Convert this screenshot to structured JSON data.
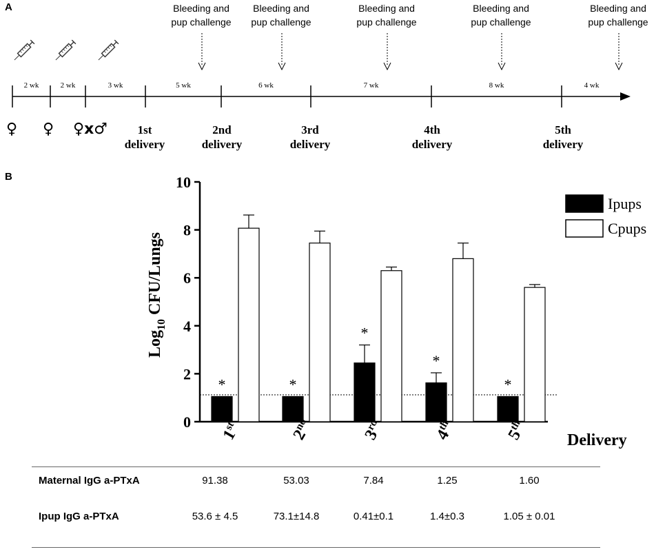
{
  "panels": {
    "a": "A",
    "b": "B"
  },
  "timeline": {
    "intervals": [
      "2 wk",
      "2 wk",
      "3 wk",
      "5 wk",
      "6 wk",
      "7 wk",
      "8 wk",
      "4 wk"
    ],
    "annotations": [
      {
        "line1": "Bleeding and",
        "line2": "pup challenge"
      },
      {
        "line1": "Bleeding and",
        "line2": "pup challenge"
      },
      {
        "line1": "Bleeding and",
        "line2": "pup challenge"
      },
      {
        "line1": "Bleeding and",
        "line2": "pup challenge"
      },
      {
        "line1": "Bleeding and",
        "line2": "pup challenge"
      }
    ],
    "sex_symbols": [
      "♀",
      "♀",
      "♀x♂"
    ],
    "deliveries": [
      {
        "line1": "1st",
        "line2": "delivery"
      },
      {
        "line1": "2nd",
        "line2": "delivery"
      },
      {
        "line1": "3rd",
        "line2": "delivery"
      },
      {
        "line1": "4th",
        "line2": "delivery"
      },
      {
        "line1": "5th",
        "line2": "delivery"
      }
    ],
    "syringe_icon": "syringe-icon"
  },
  "chart_data": {
    "type": "bar",
    "categories": [
      {
        "base": "1",
        "sup": "st"
      },
      {
        "base": "2",
        "sup": "nd"
      },
      {
        "base": "3",
        "sup": "rd"
      },
      {
        "base": "4",
        "sup": "th"
      },
      {
        "base": "5",
        "sup": "th"
      }
    ],
    "series": [
      {
        "name": "Ipups",
        "fill": "#000000",
        "values": [
          1.05,
          1.05,
          2.45,
          1.62,
          1.05
        ],
        "errors": [
          0,
          0,
          0.75,
          0.42,
          0
        ],
        "significant": [
          true,
          true,
          true,
          true,
          true
        ]
      },
      {
        "name": "Cpups",
        "fill": "#ffffff",
        "values": [
          8.07,
          7.45,
          6.3,
          6.8,
          5.6
        ],
        "errors": [
          0.55,
          0.5,
          0.15,
          0.65,
          0.12
        ],
        "significant": [
          false,
          false,
          false,
          false,
          false
        ]
      }
    ],
    "significance_marker": "*",
    "ylabel": {
      "main": "Log",
      "sub": "10",
      "rest": " CFU/Lungs"
    },
    "xlabel": "Delivery",
    "ylim": [
      0,
      10
    ],
    "yticks": [
      "0",
      "2",
      "4",
      "6",
      "8",
      "10"
    ],
    "detection_limit": 1.12
  },
  "table": {
    "rows": [
      {
        "label": "Maternal IgG a-PTxA",
        "values": [
          "91.38",
          "53.03",
          "7.84",
          "1.25",
          "1.60"
        ]
      },
      {
        "label": "Ipup IgG a-PTxA",
        "values": [
          "53.6 ± 4.5",
          "73.1±14.8",
          "0.41±0.1",
          "1.4±0.3",
          "1.05 ± 0.01"
        ]
      }
    ]
  }
}
